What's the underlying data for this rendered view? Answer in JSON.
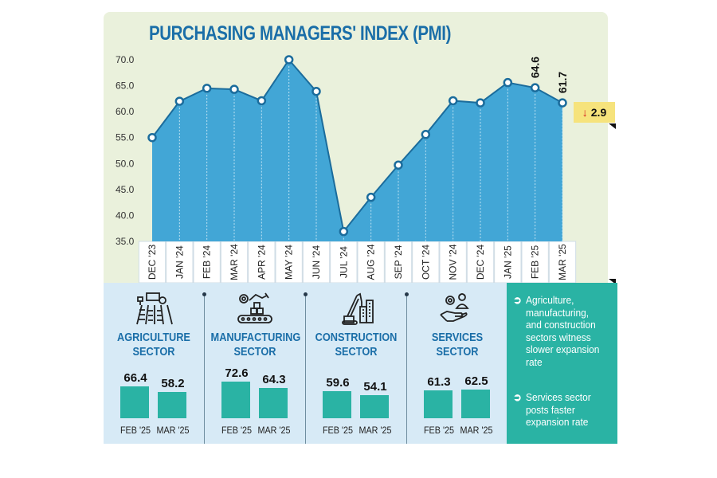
{
  "chart_data": {
    "type": "area",
    "title": "PURCHASING MANAGERS' INDEX (PMI)",
    "categories": [
      "DEC '23",
      "JAN '24",
      "FEB '24",
      "MAR '24",
      "APR '24",
      "MAY '24",
      "JUN '24",
      "JUL '24",
      "AUG '24",
      "SEP '24",
      "OCT '24",
      "NOV '24",
      "DEC '24",
      "JAN '25",
      "FEB '25",
      "MAR '25"
    ],
    "values": [
      55.0,
      62.0,
      64.5,
      64.3,
      62.1,
      70.0,
      63.9,
      36.9,
      43.5,
      49.7,
      55.6,
      62.1,
      61.7,
      65.6,
      64.6,
      61.7
    ],
    "ylim": [
      35.0,
      70.0
    ],
    "yticks": [
      "70.0",
      "65.0",
      "60.0",
      "55.0",
      "50.0",
      "45.0",
      "40.0",
      "35.0"
    ],
    "ytick_values": [
      70,
      65,
      60,
      55,
      50,
      45,
      40,
      35
    ],
    "labeled_points": {
      "14": "64.6",
      "15": "61.7"
    },
    "change": {
      "direction": "down",
      "value": "2.9"
    },
    "colors": {
      "fill": "#42a6d6",
      "line": "#1b6c9c",
      "marker_fill": "#ffffff",
      "panel_bg": "#eaf1dc",
      "title": "#1a6ea8"
    },
    "grid": false,
    "xlabel": "",
    "ylabel": ""
  },
  "sectors": [
    {
      "name_line1": "AGRICULTURE",
      "name_line2": "SECTOR",
      "icon": "tractor-field-icon",
      "feb_label": "FEB '25",
      "mar_label": "MAR '25",
      "feb": 66.4,
      "mar": 58.2,
      "feb_text": "66.4",
      "mar_text": "58.2"
    },
    {
      "name_line1": "MANUFACTURING",
      "name_line2": "SECTOR",
      "icon": "factory-conveyor-icon",
      "feb_label": "FEB '25",
      "mar_label": "MAR '25",
      "feb": 72.6,
      "mar": 64.3,
      "feb_text": "72.6",
      "mar_text": "64.3"
    },
    {
      "name_line1": "CONSTRUCTION",
      "name_line2": "SECTOR",
      "icon": "crane-building-icon",
      "feb_label": "FEB '25",
      "mar_label": "MAR '25",
      "feb": 59.6,
      "mar": 54.1,
      "feb_text": "59.6",
      "mar_text": "54.1"
    },
    {
      "name_line1": "SERVICES",
      "name_line2": "SECTOR",
      "icon": "hand-service-icon",
      "feb_label": "FEB '25",
      "mar_label": "MAR '25",
      "feb": 61.3,
      "mar": 62.5,
      "feb_text": "61.3",
      "mar_text": "62.5"
    }
  ],
  "notes": [
    {
      "icon": "arrow-circle-right-icon",
      "text": "Agriculture, manufacturing, and construction sectors witness slower expansion rate"
    },
    {
      "icon": "arrow-circle-right-icon",
      "text": "Services sector posts faster expansion rate"
    }
  ],
  "badge": {
    "arrow": "↓",
    "value": "2.9"
  },
  "note_glyph": "➲",
  "bar_color": "#2ab3a4"
}
